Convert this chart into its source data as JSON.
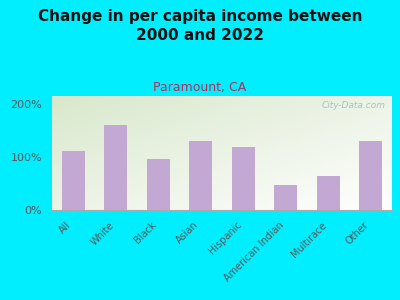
{
  "title": "Change in per capita income between\n2000 and 2022",
  "subtitle": "Paramount, CA",
  "categories": [
    "All",
    "White",
    "Black",
    "Asian",
    "Hispanic",
    "American Indian",
    "Multirace",
    "Other"
  ],
  "values": [
    112,
    160,
    97,
    130,
    118,
    48,
    65,
    130
  ],
  "bar_color": "#c4a8d4",
  "title_fontsize": 11,
  "subtitle_fontsize": 9,
  "subtitle_color": "#b03060",
  "title_color": "#111111",
  "background_color": "#00eeff",
  "ylabel_ticks": [
    0,
    100,
    200
  ],
  "ylabel_labels": [
    "0%",
    "100%",
    "200%"
  ],
  "ylim": [
    0,
    215
  ],
  "watermark": "City-Data.com",
  "tick_color": "#555555"
}
